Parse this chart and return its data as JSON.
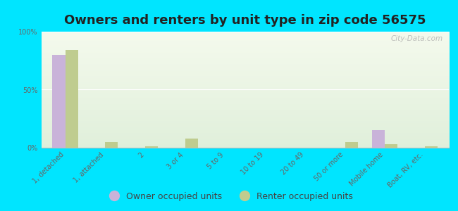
{
  "title": "Owners and renters by unit type in zip code 56575",
  "categories": [
    "1, detached",
    "1, attached",
    "2",
    "3 or 4",
    "5 to 9",
    "10 to 19",
    "20 to 49",
    "50 or more",
    "Mobile home",
    "Boat, RV, etc."
  ],
  "owner_values": [
    80,
    0,
    0,
    0,
    0,
    0,
    0,
    0,
    15,
    0
  ],
  "renter_values": [
    84,
    5,
    1,
    8,
    0,
    0,
    0,
    5,
    3,
    1
  ],
  "owner_color": "#c9b3d9",
  "renter_color": "#bfcc8f",
  "background_outer": "#00e5ff",
  "ylim": [
    0,
    100
  ],
  "yticks": [
    0,
    50,
    100
  ],
  "ytick_labels": [
    "0%",
    "50%",
    "100%"
  ],
  "legend_labels": [
    "Owner occupied units",
    "Renter occupied units"
  ],
  "watermark": "City-Data.com",
  "title_fontsize": 13,
  "tick_fontsize": 7,
  "legend_fontsize": 9,
  "bar_width": 0.32
}
